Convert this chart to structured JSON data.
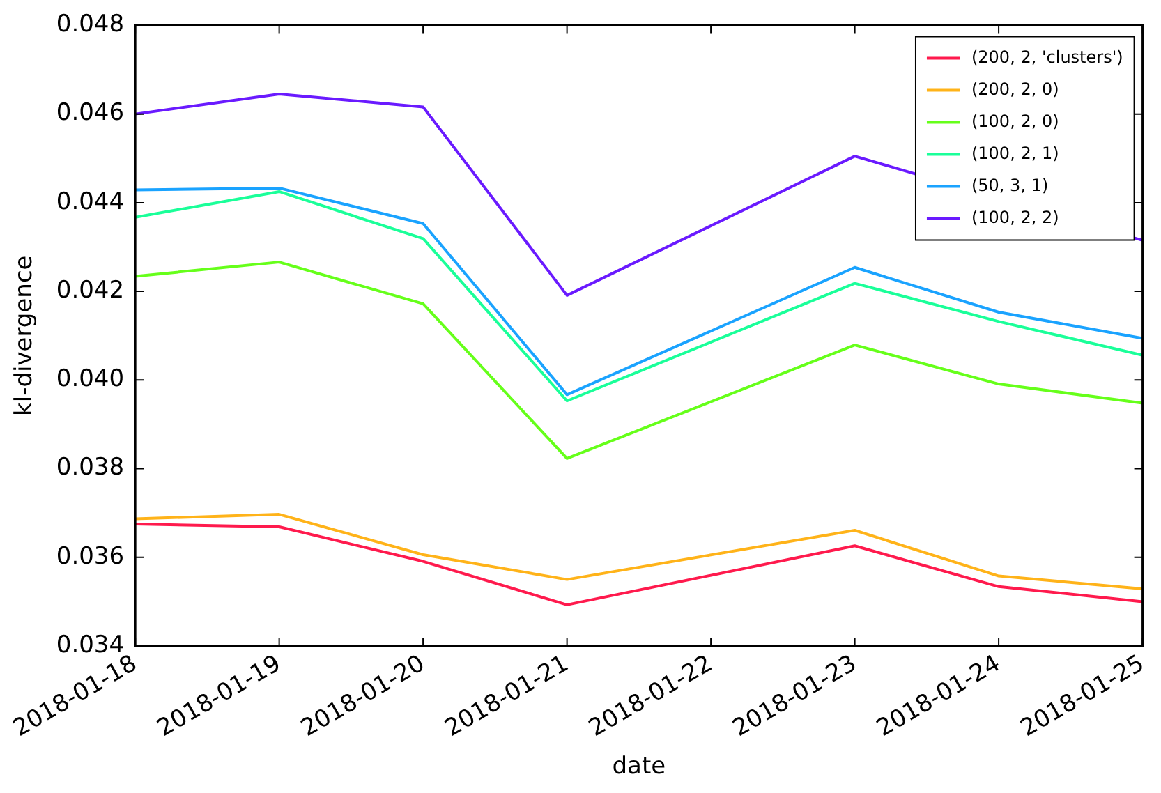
{
  "chart_data": {
    "type": "line",
    "xlabel": "date",
    "ylabel": "kl-divergence",
    "x": [
      "2018-01-18",
      "2018-01-19",
      "2018-01-20",
      "2018-01-21",
      "2018-01-23",
      "2018-01-24",
      "2018-01-25"
    ],
    "series": [
      {
        "name": "(200, 2, 'clusters')",
        "color": "#ff1a4d",
        "values": [
          0.03675,
          0.03669,
          0.03591,
          0.03493,
          0.03626,
          0.03534,
          0.035
        ]
      },
      {
        "name": "(200, 2, 0)",
        "color": "#ffb319",
        "values": [
          0.03687,
          0.03697,
          0.03606,
          0.0355,
          0.03661,
          0.03558,
          0.03529
        ]
      },
      {
        "name": "(100, 2, 0)",
        "color": "#66ff1a",
        "values": [
          0.04234,
          0.04266,
          0.04172,
          0.03823,
          0.04079,
          0.03991,
          0.03948
        ]
      },
      {
        "name": "(100, 2, 1)",
        "color": "#1aff99",
        "values": [
          0.04367,
          0.04425,
          0.04319,
          0.03953,
          0.04218,
          0.04132,
          0.04056
        ]
      },
      {
        "name": "(50, 3, 1)",
        "color": "#1aa3ff",
        "values": [
          0.04429,
          0.04433,
          0.04353,
          0.03967,
          0.04254,
          0.04153,
          0.04094
        ]
      },
      {
        "name": "(100, 2, 2)",
        "color": "#6a1aff",
        "values": [
          0.046,
          0.04645,
          0.04616,
          0.04191,
          0.04505,
          null,
          0.04315
        ]
      }
    ],
    "xlim": [
      "2018-01-18",
      "2018-01-25"
    ],
    "xticks": [
      "2018-01-18",
      "2018-01-19",
      "2018-01-20",
      "2018-01-21",
      "2018-01-22",
      "2018-01-23",
      "2018-01-24",
      "2018-01-25"
    ],
    "ylim": [
      0.034,
      0.048
    ],
    "yticks": [
      0.034,
      0.036,
      0.038,
      {
        "value": 0.04,
        "label": "0.040"
      },
      0.042,
      0.044,
      0.046,
      0.048
    ],
    "grid": false,
    "legend": "top right",
    "marker": "none",
    "line_style": "solid"
  }
}
